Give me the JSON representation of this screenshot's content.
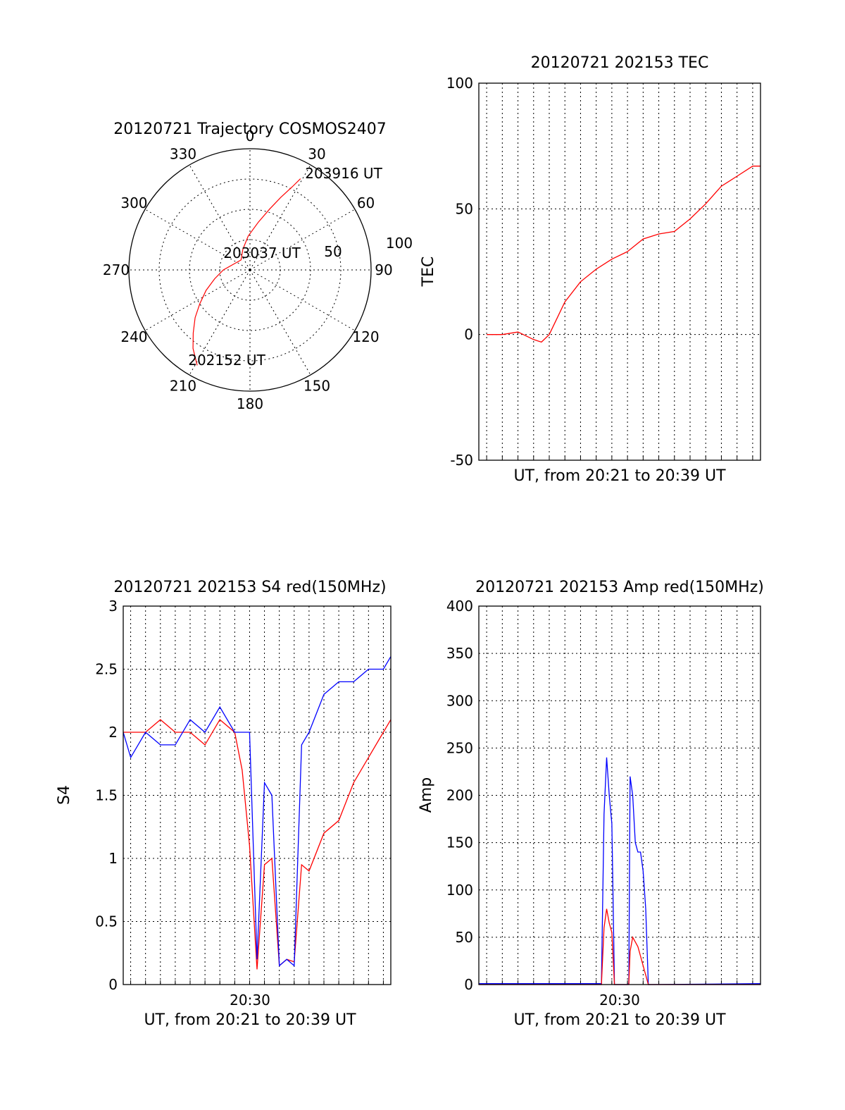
{
  "chart_data": [
    {
      "type": "polar",
      "title": "20120721 Trajectory COSMOS2407",
      "azimuth_labels": [
        "0",
        "30",
        "60",
        "90",
        "120",
        "150",
        "180",
        "210",
        "240",
        "270",
        "300",
        "330"
      ],
      "radial_labels": [
        "50",
        "100"
      ],
      "rlim": [
        0,
        100
      ],
      "grid": true,
      "series": [
        {
          "color": "#ff0000",
          "points": [
            [
              209,
              90
            ],
            [
              216,
              80
            ],
            [
              222,
              70
            ],
            [
              229,
              60
            ],
            [
              236,
              50
            ],
            [
              245,
              40
            ],
            [
              256,
              30
            ],
            [
              270,
              22
            ],
            [
              291,
              14
            ],
            [
              318,
              11
            ],
            [
              341,
              18
            ],
            [
              357,
              28
            ],
            [
              10,
              40
            ],
            [
              18,
              53
            ],
            [
              23,
              65
            ],
            [
              27,
              77
            ],
            [
              29,
              86
            ]
          ]
        }
      ],
      "annotations": [
        {
          "text": "203916 UT",
          "az": 29,
          "r": 86
        },
        {
          "text": "203037 UT",
          "az": 0,
          "r": 0
        },
        {
          "text": "202152 UT",
          "az": 209,
          "r": 90
        }
      ]
    },
    {
      "type": "line",
      "title": "20120721 202153 TEC",
      "xlabel": "UT, from 20:21 to 20:39 UT",
      "ylabel": "TEC",
      "xlim": [
        "20:21:30",
        "20:39:30"
      ],
      "ylim": [
        -50,
        100
      ],
      "yticks": [
        -50,
        0,
        50,
        100
      ],
      "grid": true,
      "series": [
        {
          "color": "#ff0000",
          "x": [
            "20:22",
            "20:23",
            "20:24",
            "20:25",
            "20:25:30",
            "20:26",
            "20:27",
            "20:28",
            "20:29",
            "20:30",
            "20:31",
            "20:32",
            "20:33",
            "20:34",
            "20:35",
            "20:36",
            "20:37",
            "20:38",
            "20:39",
            "20:39:30"
          ],
          "y": [
            0,
            0,
            1,
            -2,
            -3,
            0,
            13,
            21,
            26,
            30,
            33,
            38,
            40,
            41,
            46,
            52,
            59,
            63,
            67,
            67
          ]
        }
      ]
    },
    {
      "type": "line",
      "title": "20120721 202153 S4 red(150MHz)",
      "xlabel": "UT, from 20:21 to 20:39 UT",
      "ylabel": "S4",
      "xtick_labels": [
        "20:30"
      ],
      "xlim": [
        "20:21:30",
        "20:39:30"
      ],
      "ylim": [
        0,
        3
      ],
      "yticks": [
        "0",
        "0.5",
        "1",
        "1.5",
        "2",
        "2.5",
        "3"
      ],
      "grid": true,
      "series": [
        {
          "color": "#ff0000",
          "x": [
            "20:21:30",
            "20:22",
            "20:23",
            "20:24",
            "20:25",
            "20:26",
            "20:27",
            "20:28",
            "20:29",
            "20:29:30",
            "20:30",
            "20:30:30",
            "20:31",
            "20:31:30",
            "20:32",
            "20:32:30",
            "20:33",
            "20:33:30",
            "20:34",
            "20:35",
            "20:36",
            "20:37",
            "20:38",
            "20:39",
            "20:39:30"
          ],
          "y": [
            2.0,
            2.0,
            2.0,
            2.1,
            2.0,
            2.0,
            1.9,
            2.1,
            2.0,
            1.7,
            1.1,
            0.12,
            0.95,
            1.0,
            0.15,
            0.2,
            0.18,
            0.95,
            0.9,
            1.2,
            1.3,
            1.6,
            1.8,
            2.0,
            2.1
          ]
        },
        {
          "color": "#0000ff",
          "x": [
            "20:21:30",
            "20:22",
            "20:23",
            "20:24",
            "20:25",
            "20:26",
            "20:27",
            "20:28",
            "20:29",
            "20:29:30",
            "20:30",
            "20:30:30",
            "20:31",
            "20:31:30",
            "20:32",
            "20:32:30",
            "20:33",
            "20:33:30",
            "20:34",
            "20:35",
            "20:36",
            "20:37",
            "20:38",
            "20:39",
            "20:39:30"
          ],
          "y": [
            2.0,
            1.8,
            2.0,
            1.9,
            1.9,
            2.1,
            2.0,
            2.2,
            2.0,
            2.0,
            2.0,
            0.2,
            1.6,
            1.5,
            0.15,
            0.2,
            0.15,
            1.9,
            2.0,
            2.3,
            2.4,
            2.4,
            2.5,
            2.5,
            2.6
          ]
        }
      ]
    },
    {
      "type": "line",
      "title": "20120721 202153 Amp red(150MHz)",
      "xlabel": "UT, from 20:21 to 20:39 UT",
      "ylabel": "Amp",
      "xtick_labels": [
        "20:30"
      ],
      "xlim": [
        "20:21:30",
        "20:39:30"
      ],
      "ylim": [
        0,
        400
      ],
      "yticks": [
        "0",
        "50",
        "100",
        "150",
        "200",
        "250",
        "300",
        "350",
        "400"
      ],
      "grid": true,
      "series": [
        {
          "color": "#0000ff",
          "x": [
            "20:21:30",
            "20:29:20",
            "20:29:30",
            "20:29:40",
            "20:29:50",
            "20:30:00",
            "20:30:10",
            "20:30:20",
            "20:31:00",
            "20:31:05",
            "20:31:10",
            "20:31:20",
            "20:31:30",
            "20:31:40",
            "20:31:50",
            "20:32:00",
            "20:32:10",
            "20:32:20",
            "20:32:30",
            "20:39:30"
          ],
          "y": [
            1,
            1,
            180,
            240,
            200,
            170,
            0,
            0,
            0,
            1,
            220,
            200,
            150,
            140,
            140,
            120,
            80,
            0,
            0,
            1
          ]
        },
        {
          "color": "#ff0000",
          "x": [
            "20:21:30",
            "20:29:20",
            "20:29:30",
            "20:29:40",
            "20:29:50",
            "20:30:00",
            "20:30:10",
            "20:30:20",
            "20:31:00",
            "20:31:05",
            "20:31:10",
            "20:31:20",
            "20:31:30",
            "20:31:40",
            "20:31:50",
            "20:32:00",
            "20:32:10",
            "20:32:20",
            "20:32:30",
            "20:39:30"
          ],
          "y": [
            0,
            0,
            60,
            80,
            65,
            55,
            0,
            0,
            0,
            0,
            35,
            50,
            45,
            40,
            30,
            20,
            10,
            0,
            0,
            0
          ]
        }
      ]
    }
  ]
}
